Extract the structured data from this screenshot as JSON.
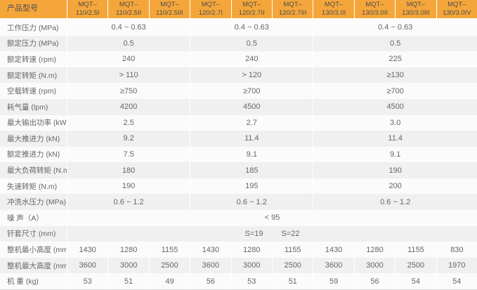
{
  "colors": {
    "header_bg": "#F5A63A",
    "header_text": "#4D4D4D",
    "body_text": "#666666",
    "row_light": "#FBFBFB",
    "row_gray": "#F0F0F0",
    "separator": "#FFFFFF",
    "bottom_border": "#D9D9D9"
  },
  "table": {
    "header": {
      "label": "产品型号",
      "columns": [
        [
          "MQT–",
          "110/2.5I"
        ],
        [
          "MQT–",
          "110/2.5II"
        ],
        [
          "MQT–",
          "110/2.5III"
        ],
        [
          "MQT–",
          "120/2.7I"
        ],
        [
          "MQT–",
          "120/2.7II"
        ],
        [
          "MQT–",
          "120/2.7III"
        ],
        [
          "MQT–",
          "130/3.0I"
        ],
        [
          "MQT–",
          "130/3.0II"
        ],
        [
          "MQT–",
          "130/3.0III"
        ],
        [
          "MQT–",
          "130/3.0IV"
        ]
      ]
    },
    "group_spans": [
      3,
      3,
      4
    ],
    "rows": [
      {
        "label": "工作压力 (MPa)",
        "type": "grouped",
        "values": [
          "0.4 ~ 0.63",
          "0.4 ~ 0.63",
          "0.4 ~ 0.63"
        ]
      },
      {
        "label": "额定压力 (MPa)",
        "type": "grouped",
        "values": [
          "0.5",
          "0.5",
          "0.5"
        ]
      },
      {
        "label": "额定转速 (rpm)",
        "type": "grouped",
        "values": [
          "240",
          "240",
          "225"
        ]
      },
      {
        "label": "额定转矩 (N.m)",
        "type": "grouped",
        "values": [
          "> 110",
          "> 120",
          "≥130"
        ]
      },
      {
        "label": "空载转速 (rpm)",
        "type": "grouped",
        "values": [
          "≥750",
          "≥700",
          "≥700"
        ]
      },
      {
        "label": "耗气量 (lpm)",
        "type": "grouped",
        "values": [
          "4200",
          "4500",
          "4500"
        ]
      },
      {
        "label": "最大输出功率 (kW)",
        "type": "grouped",
        "values": [
          "2.5",
          "2.7",
          "3.0"
        ]
      },
      {
        "label": "最大推进力 (kN)",
        "type": "grouped",
        "values": [
          "9.2",
          "11.4",
          "11.4"
        ]
      },
      {
        "label": "额定推进力 (kN)",
        "type": "grouped",
        "values": [
          "7.5",
          "9.1",
          "9.1"
        ]
      },
      {
        "label": "最大负荷转矩 (N.m)",
        "type": "grouped",
        "values": [
          "180",
          "185",
          "190"
        ]
      },
      {
        "label": "失速转矩 (N.m)",
        "type": "grouped",
        "values": [
          "190",
          "195",
          "200"
        ]
      },
      {
        "label": "冲洗水压力 (MPa)",
        "type": "grouped",
        "values": [
          "0.6 ~ 1.2",
          "0.6 ~ 1.2",
          "0.6 ~ 1.2"
        ]
      },
      {
        "label": "噪 声（A）",
        "type": "full",
        "values": [
          "< 95"
        ]
      },
      {
        "label": "钎套尺寸 (mm)",
        "type": "pair",
        "values": [
          "S=19",
          "S=22"
        ]
      },
      {
        "label": "整机最小高度 (mm)",
        "type": "percol",
        "values": [
          "1430",
          "1280",
          "1155",
          "1430",
          "1280",
          "1155",
          "1430",
          "1280",
          "1155",
          "830"
        ]
      },
      {
        "label": "整机最大高度 (mm)",
        "type": "percol",
        "values": [
          "3600",
          "3000",
          "2500",
          "3600",
          "3000",
          "2500",
          "3600",
          "3000",
          "2500",
          "1970"
        ]
      },
      {
        "label": "机 重 (kg)",
        "type": "percol",
        "values": [
          "53",
          "51",
          "49",
          "56",
          "53",
          "51",
          "59",
          "56",
          "54",
          "54"
        ]
      }
    ]
  }
}
